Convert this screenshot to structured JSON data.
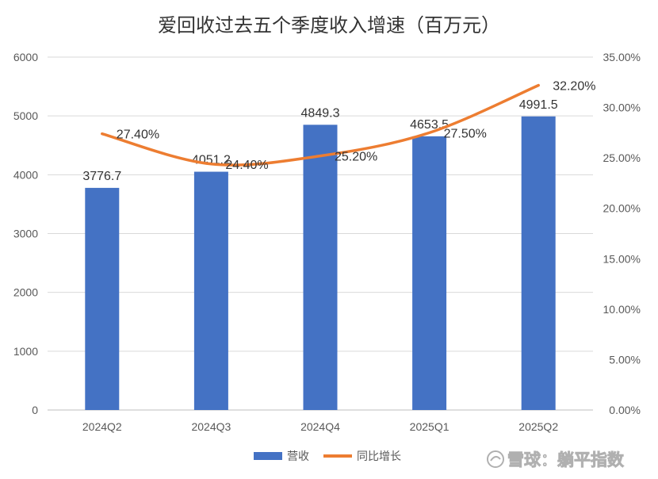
{
  "chart_data": {
    "type": "bar+line",
    "title": "爱回收过去五个季度收入增速（百万元）",
    "categories": [
      "2024Q2",
      "2024Q3",
      "2024Q4",
      "2025Q1",
      "2025Q2"
    ],
    "series": [
      {
        "name": "营收",
        "type": "bar",
        "axis": "left",
        "values": [
          3776.7,
          4051.2,
          4849.3,
          4653.5,
          4991.5
        ],
        "labels": [
          "3776.7",
          "4051.2",
          "4849.3",
          "4653.5",
          "4991.5"
        ],
        "color": "#4472c4"
      },
      {
        "name": "同比增长",
        "type": "line",
        "axis": "right",
        "values": [
          27.4,
          24.4,
          25.2,
          27.5,
          32.2
        ],
        "labels": [
          "27.40%",
          "24.40%",
          "25.20%",
          "27.50%",
          "32.20%"
        ],
        "color": "#ed7d31"
      }
    ],
    "y_left": {
      "min": 0,
      "max": 6000,
      "step": 1000,
      "tick_labels": [
        "0",
        "1000",
        "2000",
        "3000",
        "4000",
        "5000",
        "6000"
      ]
    },
    "y_right": {
      "min": 0,
      "max": 35,
      "step": 5,
      "tick_labels": [
        "0.00%",
        "5.00%",
        "10.00%",
        "15.00%",
        "20.00%",
        "25.00%",
        "30.00%",
        "35.00%"
      ]
    },
    "grid": true,
    "legend_position": "bottom"
  },
  "watermark": {
    "text": "雪球：躺平指数",
    "icon": "snowball-logo-icon"
  }
}
